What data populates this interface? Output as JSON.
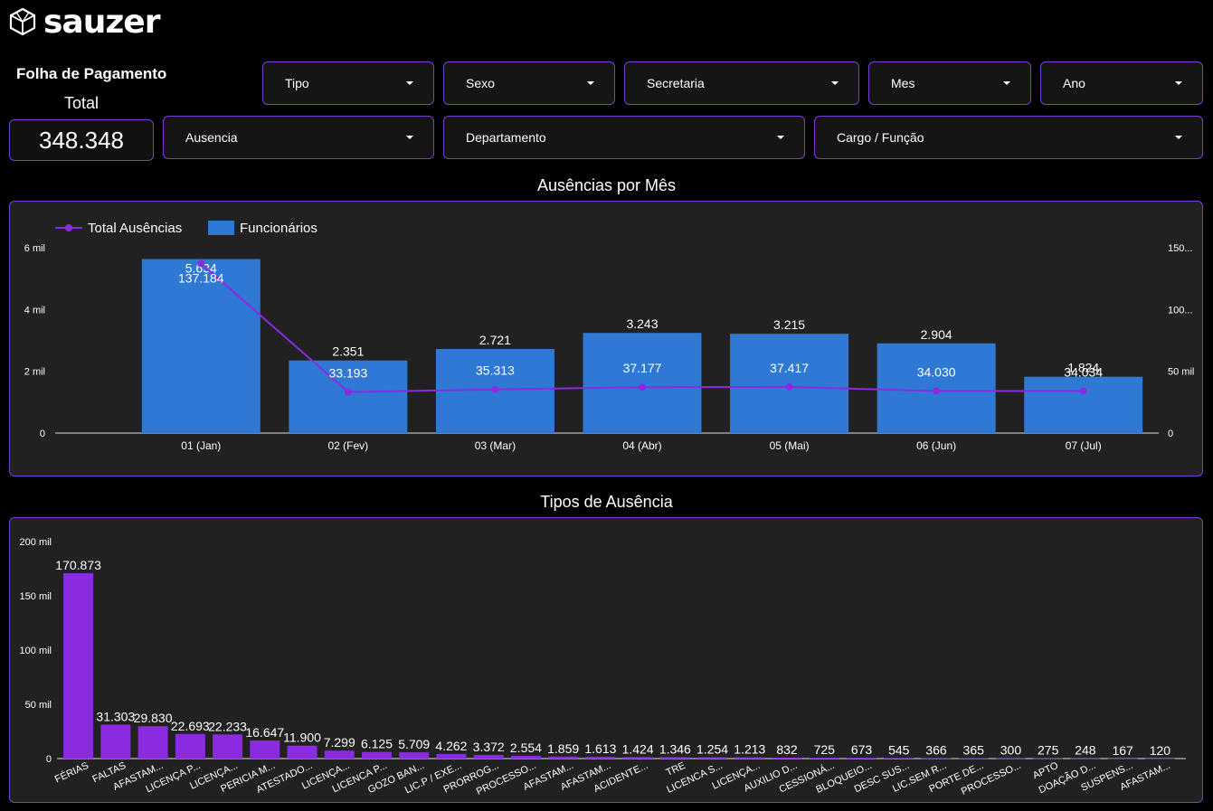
{
  "brand": {
    "name": "sauzer"
  },
  "header": {
    "title": "Folha de Pagamento"
  },
  "kpi": {
    "label": "Total",
    "value": "348.348"
  },
  "filters": {
    "tipo": "Tipo",
    "sexo": "Sexo",
    "secretaria": "Secretaria",
    "mes": "Mes",
    "ano": "Ano",
    "ausencia": "Ausencia",
    "departamento": "Departamento",
    "cargo": "Cargo / Função"
  },
  "colors": {
    "accent": "#7b3fcf",
    "bar_blue": "#2f78d4",
    "bar_purple": "#8a2be2",
    "line_purple": "#8a2be2"
  },
  "charts": {
    "monthly_title": "Ausências por Mês",
    "types_title": "Tipos de Ausência"
  },
  "chart_data": [
    {
      "type": "bar",
      "title": "Ausências por Mês",
      "categories": [
        "01 (Jan)",
        "02 (Fev)",
        "03 (Mar)",
        "04 (Abr)",
        "05 (Mai)",
        "06 (Jun)",
        "07 (Jul)"
      ],
      "series": [
        {
          "name": "Funcionários",
          "type": "bar",
          "axis": "left",
          "values": [
            5634,
            2351,
            2721,
            3243,
            3215,
            2904,
            1824
          ],
          "labels": [
            "5.634",
            "2.351",
            "2.721",
            "3.243",
            "3.215",
            "2.904",
            "1.824"
          ]
        },
        {
          "name": "Total Ausências",
          "type": "line",
          "axis": "right",
          "values": [
            137184,
            33193,
            35313,
            37177,
            37417,
            34030,
            34034
          ],
          "labels": [
            "137.184",
            "33.193",
            "35.313",
            "37.177",
            "37.417",
            "34.030",
            "34.034"
          ]
        }
      ],
      "left_axis": {
        "ylim": [
          0,
          6000
        ],
        "ticks": [
          "0",
          "2 mil",
          "4 mil",
          "6 mil"
        ]
      },
      "right_axis": {
        "ylim": [
          0,
          150000
        ],
        "ticks": [
          "0",
          "50 mil",
          "100...",
          "150..."
        ]
      },
      "legend": "top-left",
      "grid": false
    },
    {
      "type": "bar",
      "title": "Tipos de Ausência",
      "categories": [
        "FÉRIAS",
        "FALTAS",
        "AFASTAM...",
        "LICENÇA P...",
        "LICENÇA...",
        "PERICIA M...",
        "ATESTADO...",
        "LICENÇA...",
        "LICENCA P...",
        "GOZO BAN...",
        "LIC.P / EXE...",
        "PRORROG...",
        "PROCESSO...",
        "AFASTAM...",
        "AFASTAM...",
        "ACIDENTE...",
        "TRE",
        "LICENCA S...",
        "LICENÇA...",
        "AUXILIO D...",
        "CESSIONÁ...",
        "BLOQUEIO...",
        "DESC SUS...",
        "LIC.SEM R...",
        "PORTE DE...",
        "PROCESSO...",
        "APTO",
        "DOAÇÃO D...",
        "SUSPENS...",
        "AFASTAM..."
      ],
      "values": [
        170873,
        31303,
        29830,
        22693,
        22233,
        16647,
        11900,
        7299,
        6125,
        5709,
        4262,
        3372,
        2554,
        1859,
        1613,
        1424,
        1346,
        1254,
        1213,
        832,
        725,
        673,
        545,
        366,
        365,
        300,
        275,
        248,
        167,
        120
      ],
      "labels": [
        "170.873",
        "31.303",
        "29.830",
        "22.693",
        "22.233",
        "16.647",
        "11.900",
        "7.299",
        "6.125",
        "5.709",
        "4.262",
        "3.372",
        "2.554",
        "1.859",
        "1.613",
        "1.424",
        "1.346",
        "1.254",
        "1.213",
        "832",
        "725",
        "673",
        "545",
        "366",
        "365",
        "300",
        "275",
        "248",
        "167",
        "120"
      ],
      "ylim": [
        0,
        200000
      ],
      "yticks": [
        "0",
        "50 mil",
        "100 mil",
        "150 mil",
        "200 mil"
      ],
      "grid": false
    }
  ]
}
